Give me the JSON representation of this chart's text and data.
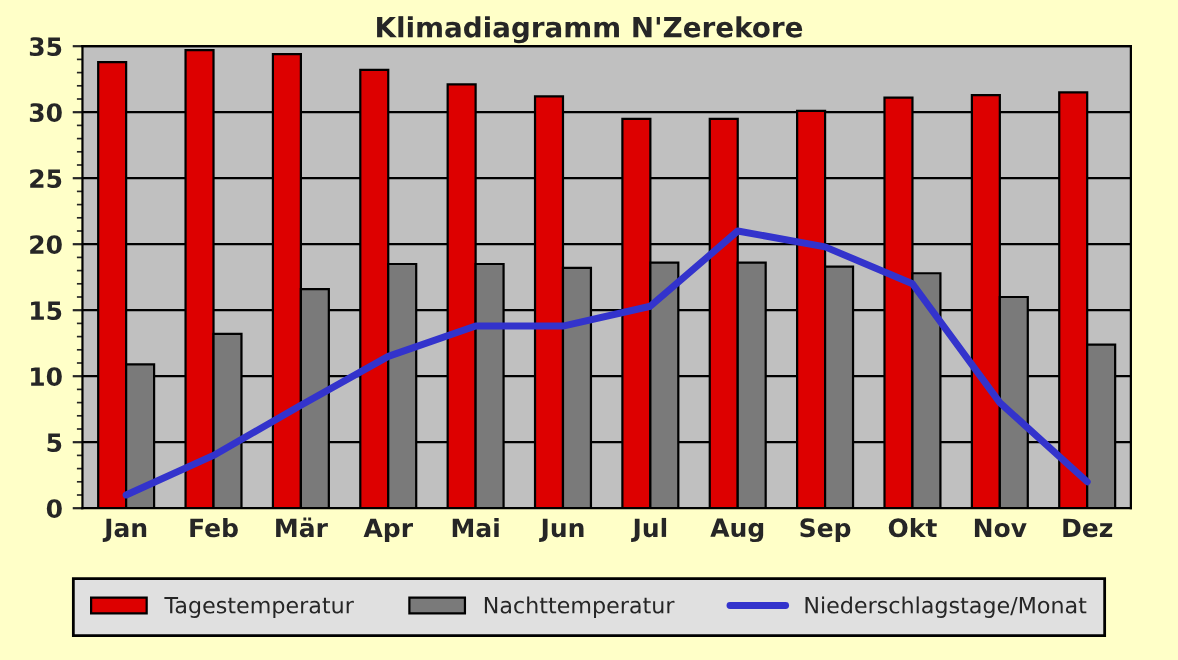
{
  "chart_data": {
    "type": "bar",
    "title": "Klimadiagramm N'Zerekore",
    "categories": [
      "Jan",
      "Feb",
      "Mär",
      "Apr",
      "Mai",
      "Jun",
      "Jul",
      "Aug",
      "Sep",
      "Okt",
      "Nov",
      "Dez"
    ],
    "series": [
      {
        "name": "Tagestemperatur",
        "color": "#dd0000",
        "values": [
          33.8,
          34.7,
          34.4,
          33.2,
          32.1,
          31.2,
          29.5,
          29.5,
          30.1,
          31.1,
          31.3,
          31.5
        ]
      },
      {
        "name": "Nachttemperatur",
        "color": "#7a7a7a",
        "values": [
          10.9,
          13.2,
          16.6,
          18.5,
          18.5,
          18.2,
          18.6,
          18.6,
          18.3,
          17.8,
          16.0,
          12.4
        ]
      },
      {
        "name": "Niederschlagstage/Monat",
        "type": "line",
        "color": "#3333cc",
        "values": [
          1.0,
          4.0,
          7.8,
          11.5,
          13.8,
          13.8,
          15.3,
          21.0,
          19.8,
          17.0,
          8.0,
          2.0
        ]
      }
    ],
    "ylim": [
      0,
      35
    ],
    "yticks": [
      0,
      5,
      10,
      15,
      20,
      25,
      30,
      35
    ],
    "grid": "y",
    "legend": "bottom"
  }
}
